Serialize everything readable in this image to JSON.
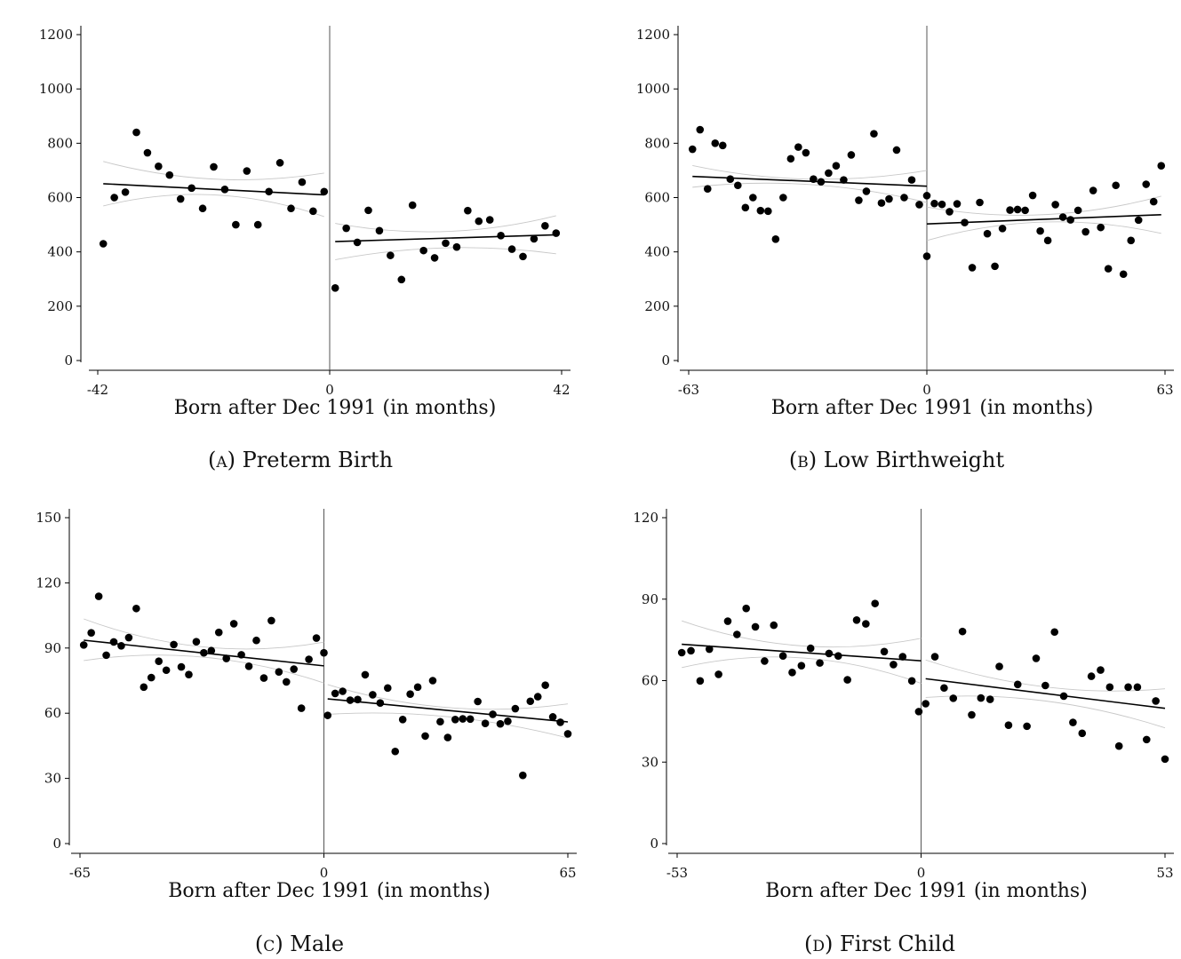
{
  "chart_data": [
    {
      "type": "scatter",
      "caption_letter": "(a)",
      "caption": "Preterm Birth",
      "xlabel": "Born after Dec 1991 (in months)",
      "ylabel": "",
      "xlim": [
        -42,
        42
      ],
      "ylim": [
        0,
        1200
      ],
      "x_ticks": [
        -42,
        0,
        42
      ],
      "y_ticks": [
        0,
        200,
        400,
        600,
        800,
        1000,
        1200
      ],
      "cutoff": 0,
      "grid": false,
      "x_bin_step": 2,
      "points": [
        [
          -41,
          430
        ],
        [
          -39,
          600
        ],
        [
          -37,
          620
        ],
        [
          -35,
          840
        ],
        [
          -33,
          765
        ],
        [
          -31,
          715
        ],
        [
          -29,
          683
        ],
        [
          -27,
          595
        ],
        [
          -25,
          635
        ],
        [
          -23,
          560
        ],
        [
          -21,
          713
        ],
        [
          -19,
          630
        ],
        [
          -17,
          500
        ],
        [
          -15,
          698
        ],
        [
          -13,
          500
        ],
        [
          -11,
          622
        ],
        [
          -9,
          728
        ],
        [
          -7,
          560
        ],
        [
          -5,
          657
        ],
        [
          -3,
          550
        ],
        [
          -1,
          622
        ],
        [
          1,
          267
        ],
        [
          3,
          487
        ],
        [
          5,
          435
        ],
        [
          7,
          553
        ],
        [
          9,
          478
        ],
        [
          11,
          387
        ],
        [
          13,
          298
        ],
        [
          15,
          572
        ],
        [
          17,
          405
        ],
        [
          19,
          378
        ],
        [
          21,
          432
        ],
        [
          23,
          418
        ],
        [
          25,
          552
        ],
        [
          27,
          513
        ],
        [
          29,
          518
        ],
        [
          31,
          460
        ],
        [
          33,
          410
        ],
        [
          35,
          383
        ],
        [
          37,
          448
        ],
        [
          39,
          496
        ],
        [
          41,
          469
        ]
      ],
      "fit_left": [
        [
          -41,
          651
        ],
        [
          -1,
          610
        ]
      ],
      "fit_right": [
        [
          1,
          438
        ],
        [
          41,
          463
        ]
      ],
      "ci_left_upper": [
        [
          -41,
          733
        ],
        [
          -21,
          668
        ],
        [
          -1,
          690
        ]
      ],
      "ci_left_lower": [
        [
          -41,
          569
        ],
        [
          -21,
          610
        ],
        [
          -1,
          530
        ]
      ],
      "ci_right_upper": [
        [
          1,
          505
        ],
        [
          21,
          475
        ],
        [
          41,
          533
        ]
      ],
      "ci_right_lower": [
        [
          1,
          371
        ],
        [
          21,
          415
        ],
        [
          41,
          393
        ]
      ]
    },
    {
      "type": "scatter",
      "caption_letter": "(b)",
      "caption": "Low Birthweight",
      "xlabel": "Born after Dec 1991 (in months)",
      "ylabel": "",
      "xlim": [
        -63,
        63
      ],
      "ylim": [
        0,
        1200
      ],
      "x_ticks": [
        -63,
        0,
        63
      ],
      "y_ticks": [
        0,
        200,
        400,
        600,
        800,
        1000,
        1200
      ],
      "cutoff": 0,
      "grid": false,
      "x_bin_step": 2,
      "points": [
        [
          -62,
          778
        ],
        [
          -60,
          850
        ],
        [
          -58,
          632
        ],
        [
          -56,
          800
        ],
        [
          -54,
          792
        ],
        [
          -52,
          668
        ],
        [
          -50,
          645
        ],
        [
          -48,
          563
        ],
        [
          -46,
          600
        ],
        [
          -44,
          552
        ],
        [
          -42,
          550
        ],
        [
          -40,
          447
        ],
        [
          -38,
          600
        ],
        [
          -36,
          743
        ],
        [
          -34,
          786
        ],
        [
          -32,
          765
        ],
        [
          -30,
          668
        ],
        [
          -28,
          658
        ],
        [
          -26,
          690
        ],
        [
          -24,
          717
        ],
        [
          -22,
          665
        ],
        [
          -20,
          757
        ],
        [
          -18,
          590
        ],
        [
          -16,
          623
        ],
        [
          -14,
          835
        ],
        [
          -12,
          580
        ],
        [
          -10,
          595
        ],
        [
          -8,
          775
        ],
        [
          -6,
          600
        ],
        [
          -4,
          665
        ],
        [
          -2,
          574
        ],
        [
          0,
          607
        ],
        [
          0,
          384
        ],
        [
          2,
          578
        ],
        [
          4,
          575
        ],
        [
          6,
          548
        ],
        [
          8,
          577
        ],
        [
          10,
          508
        ],
        [
          12,
          342
        ],
        [
          14,
          582
        ],
        [
          16,
          467
        ],
        [
          18,
          347
        ],
        [
          20,
          486
        ],
        [
          22,
          554
        ],
        [
          24,
          556
        ],
        [
          26,
          553
        ],
        [
          28,
          608
        ],
        [
          30,
          477
        ],
        [
          32,
          442
        ],
        [
          34,
          574
        ],
        [
          36,
          528
        ],
        [
          38,
          518
        ],
        [
          40,
          553
        ],
        [
          42,
          474
        ],
        [
          44,
          626
        ],
        [
          46,
          490
        ],
        [
          48,
          338
        ],
        [
          50,
          645
        ],
        [
          52,
          318
        ],
        [
          54,
          442
        ],
        [
          56,
          517
        ],
        [
          58,
          649
        ],
        [
          60,
          585
        ],
        [
          62,
          717
        ]
      ],
      "fit_left": [
        [
          -62,
          678
        ],
        [
          0,
          642
        ]
      ],
      "fit_right": [
        [
          0,
          503
        ],
        [
          62,
          537
        ]
      ],
      "ci_left_upper": [
        [
          -62,
          718
        ],
        [
          -31,
          668
        ],
        [
          0,
          700
        ]
      ],
      "ci_left_lower": [
        [
          -62,
          638
        ],
        [
          -31,
          648
        ],
        [
          0,
          582
        ]
      ],
      "ci_right_upper": [
        [
          0,
          565
        ],
        [
          31,
          537
        ],
        [
          62,
          605
        ]
      ],
      "ci_right_lower": [
        [
          0,
          442
        ],
        [
          31,
          510
        ],
        [
          62,
          468
        ]
      ]
    },
    {
      "type": "scatter",
      "caption_letter": "(c)",
      "caption": "Male",
      "xlabel": "Born after Dec 1991 (in months)",
      "ylabel": "",
      "xlim": [
        -65,
        65
      ],
      "ylim": [
        0,
        150
      ],
      "x_ticks": [
        -65,
        0,
        65
      ],
      "y_ticks": [
        0,
        30,
        60,
        90,
        120,
        150
      ],
      "cutoff": 0,
      "grid": false,
      "x_bin_step": 2,
      "points": [
        [
          -64,
          91.4
        ],
        [
          -62,
          97.0
        ],
        [
          -60,
          113.8
        ],
        [
          -58,
          86.7
        ],
        [
          -56,
          92.8
        ],
        [
          -54,
          91.0
        ],
        [
          -52,
          94.8
        ],
        [
          -50,
          108.2
        ],
        [
          -48,
          72.0
        ],
        [
          -46,
          76.4
        ],
        [
          -44,
          83.9
        ],
        [
          -42,
          79.8
        ],
        [
          -40,
          91.6
        ],
        [
          -38,
          81.3
        ],
        [
          -36,
          77.8
        ],
        [
          -34,
          92.9
        ],
        [
          -32,
          87.8
        ],
        [
          -30,
          88.8
        ],
        [
          -28,
          97.2
        ],
        [
          -26,
          85.2
        ],
        [
          -24,
          101.2
        ],
        [
          -22,
          86.9
        ],
        [
          -20,
          81.6
        ],
        [
          -18,
          93.5
        ],
        [
          -16,
          76.2
        ],
        [
          -14,
          102.6
        ],
        [
          -12,
          79.0
        ],
        [
          -10,
          74.4
        ],
        [
          -8,
          80.3
        ],
        [
          -6,
          62.3
        ],
        [
          -4,
          84.8
        ],
        [
          -2,
          94.6
        ],
        [
          0,
          87.8
        ],
        [
          1,
          59.0
        ],
        [
          3,
          69.1
        ],
        [
          5,
          70.1
        ],
        [
          7,
          66.0
        ],
        [
          9,
          66.3
        ],
        [
          11,
          77.7
        ],
        [
          13,
          68.5
        ],
        [
          15,
          64.7
        ],
        [
          17,
          71.6
        ],
        [
          19,
          42.4
        ],
        [
          21,
          57.1
        ],
        [
          23,
          68.8
        ],
        [
          25,
          72.0
        ],
        [
          27,
          49.5
        ],
        [
          29,
          75.0
        ],
        [
          31,
          56.1
        ],
        [
          33,
          48.8
        ],
        [
          35,
          57.1
        ],
        [
          37,
          57.4
        ],
        [
          39,
          57.3
        ],
        [
          41,
          65.4
        ],
        [
          43,
          55.3
        ],
        [
          45,
          59.5
        ],
        [
          47,
          55.1
        ],
        [
          49,
          56.3
        ],
        [
          51,
          62.1
        ],
        [
          53,
          31.4
        ],
        [
          55,
          65.5
        ],
        [
          57,
          67.6
        ],
        [
          59,
          72.9
        ],
        [
          61,
          58.3
        ],
        [
          63,
          55.8
        ],
        [
          65,
          50.5
        ]
      ],
      "fit_left": [
        [
          -64,
          93.6
        ],
        [
          0,
          81.8
        ]
      ],
      "fit_right": [
        [
          1,
          66.6
        ],
        [
          65,
          56.0
        ]
      ],
      "ci_left_upper": [
        [
          -64,
          103.4
        ],
        [
          -32,
          90.5
        ],
        [
          0,
          92.7
        ]
      ],
      "ci_left_lower": [
        [
          -64,
          84.2
        ],
        [
          -32,
          85.8
        ],
        [
          0,
          73.9
        ]
      ],
      "ci_right_upper": [
        [
          1,
          73.2
        ],
        [
          33,
          62.6
        ],
        [
          65,
          64.3
        ]
      ],
      "ci_right_lower": [
        [
          1,
          59.5
        ],
        [
          33,
          58.4
        ],
        [
          65,
          48.6
        ]
      ]
    },
    {
      "type": "scatter",
      "caption_letter": "(d)",
      "caption": "First Child",
      "xlabel": "Born after Dec 1991 (in months)",
      "ylabel": "",
      "xlim": [
        -53,
        53
      ],
      "ylim": [
        0,
        120
      ],
      "x_ticks": [
        -53,
        0,
        53
      ],
      "y_ticks": [
        0,
        30,
        60,
        90,
        120
      ],
      "cutoff": 0,
      "grid": false,
      "x_bin_step": 2,
      "points": [
        [
          -52,
          70.3
        ],
        [
          -50,
          71.0
        ],
        [
          -48,
          59.9
        ],
        [
          -46,
          71.6
        ],
        [
          -44,
          62.3
        ],
        [
          -42,
          81.9
        ],
        [
          -40,
          77.0
        ],
        [
          -38,
          86.6
        ],
        [
          -36,
          79.8
        ],
        [
          -34,
          67.2
        ],
        [
          -32,
          80.4
        ],
        [
          -30,
          69.1
        ],
        [
          -28,
          63.0
        ],
        [
          -26,
          65.5
        ],
        [
          -24,
          71.9
        ],
        [
          -22,
          66.5
        ],
        [
          -20,
          70.0
        ],
        [
          -18,
          69.1
        ],
        [
          -16,
          60.3
        ],
        [
          -14,
          82.3
        ],
        [
          -12,
          80.9
        ],
        [
          -10,
          88.4
        ],
        [
          -8,
          70.7
        ],
        [
          -6,
          65.9
        ],
        [
          -4,
          68.8
        ],
        [
          -2,
          59.9
        ],
        [
          -0.5,
          48.6
        ],
        [
          1,
          51.5
        ],
        [
          3,
          68.8
        ],
        [
          5,
          57.3
        ],
        [
          7,
          53.5
        ],
        [
          9,
          78.1
        ],
        [
          11,
          47.4
        ],
        [
          13,
          53.6
        ],
        [
          15,
          53.1
        ],
        [
          17,
          65.2
        ],
        [
          19,
          43.6
        ],
        [
          21,
          58.6
        ],
        [
          23,
          43.2
        ],
        [
          25,
          68.2
        ],
        [
          27,
          58.2
        ],
        [
          29,
          77.9
        ],
        [
          31,
          54.3
        ],
        [
          33,
          44.6
        ],
        [
          35,
          40.6
        ],
        [
          37,
          61.6
        ],
        [
          39,
          63.9
        ],
        [
          41,
          57.6
        ],
        [
          43,
          35.9
        ],
        [
          45,
          57.6
        ],
        [
          47,
          57.6
        ],
        [
          49,
          38.3
        ],
        [
          51,
          52.5
        ],
        [
          53,
          31.1
        ]
      ],
      "fit_left": [
        [
          -52,
          73.4
        ],
        [
          0,
          67.3
        ]
      ],
      "fit_right": [
        [
          1,
          60.7
        ],
        [
          53,
          49.8
        ]
      ],
      "ci_left_upper": [
        [
          -52,
          82.0
        ],
        [
          -26,
          72.8
        ],
        [
          0,
          75.6
        ]
      ],
      "ci_left_lower": [
        [
          -52,
          64.8
        ],
        [
          -26,
          68.4
        ],
        [
          0,
          59.0
        ]
      ],
      "ci_right_upper": [
        [
          1,
          67.6
        ],
        [
          27,
          57.7
        ],
        [
          53,
          57.0
        ]
      ],
      "ci_right_lower": [
        [
          1,
          53.8
        ],
        [
          27,
          52.5
        ],
        [
          53,
          42.6
        ]
      ]
    }
  ]
}
